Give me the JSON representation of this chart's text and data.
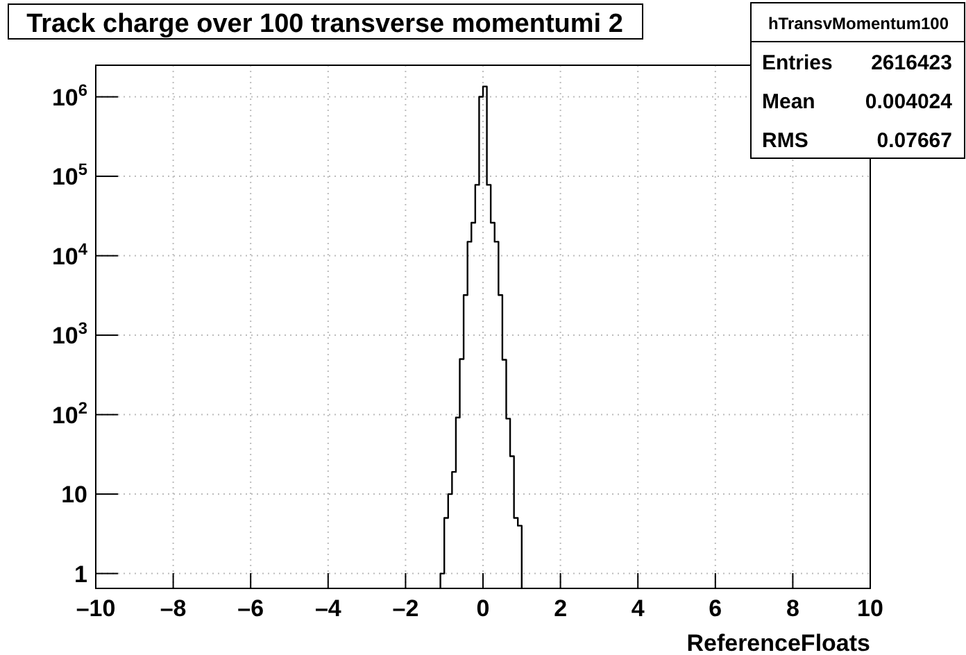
{
  "chart_data": {
    "type": "histogram",
    "title": "Track charge over 100 transverse momentumi 2",
    "xlabel": "ReferenceFloats",
    "bins": [
      -1.1,
      -1.0,
      -0.9,
      -0.8,
      -0.7,
      -0.6,
      -0.5,
      -0.4,
      -0.3,
      -0.2,
      -0.1,
      0,
      0.1,
      0.2,
      0.3,
      0.4,
      0.5,
      0.6,
      0.7,
      0.8,
      0.9,
      1.0
    ],
    "values": [
      1,
      5,
      10,
      19,
      92,
      500,
      3200,
      15000,
      26000,
      78000,
      1000000,
      1350000,
      78000,
      26000,
      15000,
      3200,
      490,
      89,
      30,
      5,
      4
    ],
    "color": "#000000",
    "log": "y",
    "xlim": [
      -10,
      10
    ],
    "ylim": [
      0.65,
      2500000
    ],
    "xticks": [
      {
        "value": -10,
        "label": "–10"
      },
      {
        "value": -8,
        "label": "–8"
      },
      {
        "value": -6,
        "label": "–6"
      },
      {
        "value": -4,
        "label": "–4"
      },
      {
        "value": -2,
        "label": "–2"
      },
      0,
      2,
      4,
      6,
      8,
      10
    ],
    "yticks": [
      1,
      10,
      {
        "value": 100,
        "label": "10$^{2}$"
      },
      {
        "value": 1000,
        "label": "10$^{3}$"
      },
      {
        "value": 10000,
        "label": "10$^{4}$"
      },
      {
        "value": 100000,
        "label": "10$^{5}$"
      },
      {
        "value": 1000000,
        "label": "10$^{6}$"
      }
    ],
    "grid": true,
    "annotations": [
      "hTransvMomentum100",
      "Entries 2616423",
      "Mean 0.004024",
      "RMS 0.07667"
    ]
  }
}
